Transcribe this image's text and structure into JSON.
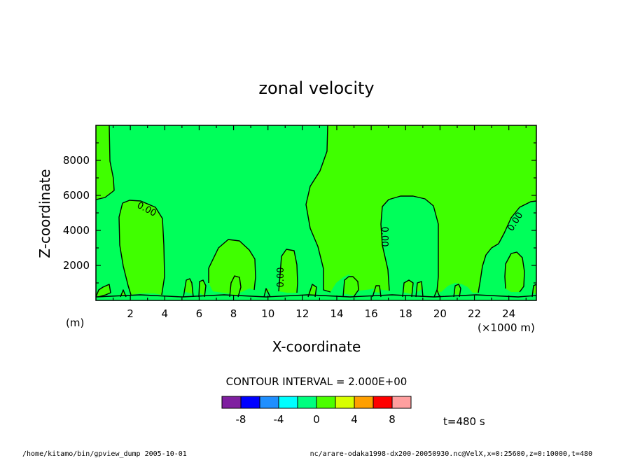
{
  "chart_data": {
    "type": "contour",
    "title": "zonal velocity",
    "xlabel": "X-coordinate",
    "ylabel": "Z-coordinate",
    "x_unit_left": "(m)",
    "x_unit_right": "(×1000 m)",
    "xlim": [
      0,
      25.6
    ],
    "ylim": [
      0,
      10000
    ],
    "xticks": [
      2,
      4,
      6,
      8,
      10,
      12,
      14,
      16,
      18,
      20,
      22,
      24
    ],
    "yticks": [
      2000,
      4000,
      6000,
      8000
    ],
    "contour_level_labels": [
      "0.00",
      "0.00",
      "0.00",
      "0.00"
    ],
    "contour_interval_text": "CONTOUR INTERVAL = 2.000E+00",
    "colorbar": {
      "colors": [
        "#7f1fa0",
        "#0000ff",
        "#1f8fff",
        "#00ffff",
        "#00ff7f",
        "#4cff00",
        "#d8ff00",
        "#ff9f00",
        "#ff0000",
        "#ff9f9f"
      ],
      "tick_labels": [
        "-8",
        "-4",
        "0",
        "4",
        "8"
      ]
    },
    "time_label": "t=480 s",
    "regions": {
      "zero_to_two_color": "#00ff5a",
      "two_to_four_color": "#40ff00"
    }
  },
  "footer": {
    "left": "/home/kitamo/bin/gpview_dump  2005-10-01",
    "right": "nc/arare-odaka1998-dx200-20050930.nc@VelX,x=0:25600,z=0:10000,t=480"
  }
}
